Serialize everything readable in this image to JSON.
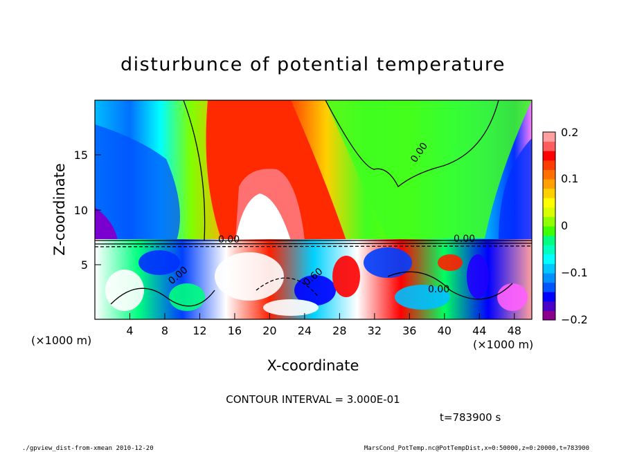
{
  "chart_data": {
    "type": "heatmap",
    "title": "disturbunce of potential temperature",
    "xlabel": "X-coordinate",
    "ylabel": "Z-coordinate",
    "x_unit_left": "(×1000 m)",
    "x_unit_right": "(×1000 m)",
    "xlim": [
      0,
      50
    ],
    "ylim": [
      0,
      20
    ],
    "x_ticks": [
      "4",
      "8",
      "12",
      "16",
      "20",
      "24",
      "28",
      "32",
      "36",
      "40",
      "44",
      "48"
    ],
    "y_ticks": [
      "5",
      "10",
      "15"
    ],
    "colorbar": {
      "range": [
        -0.2,
        0.2
      ],
      "ticks": [
        "0.2",
        "0.1",
        "0",
        "−0.1",
        "−0.2"
      ],
      "colors": [
        "#8b008b",
        "#4a00c8",
        "#0000ff",
        "#0055ff",
        "#0090ff",
        "#00c8ff",
        "#00ffff",
        "#00ffc0",
        "#00ff80",
        "#40ff00",
        "#90ff00",
        "#d8ff00",
        "#ffff00",
        "#ffd000",
        "#ffa000",
        "#ff7000",
        "#ff3c00",
        "#ff0000",
        "#ff5c5c",
        "#ffa0a0"
      ]
    },
    "contour_labels": [
      "0.00",
      "0.00",
      "0.00",
      "0.00",
      "0.60",
      "0.00"
    ],
    "annotation": "CONTOUR INTERVAL = 3.000E-01",
    "time_label": "t=783900 s"
  },
  "footer": {
    "left": "./gpview_dist-from-xmean  2010-12-20",
    "right": "MarsCond_PotTemp.nc@PotTempDist,x=0:50000,z=0:20000,t=783900"
  }
}
